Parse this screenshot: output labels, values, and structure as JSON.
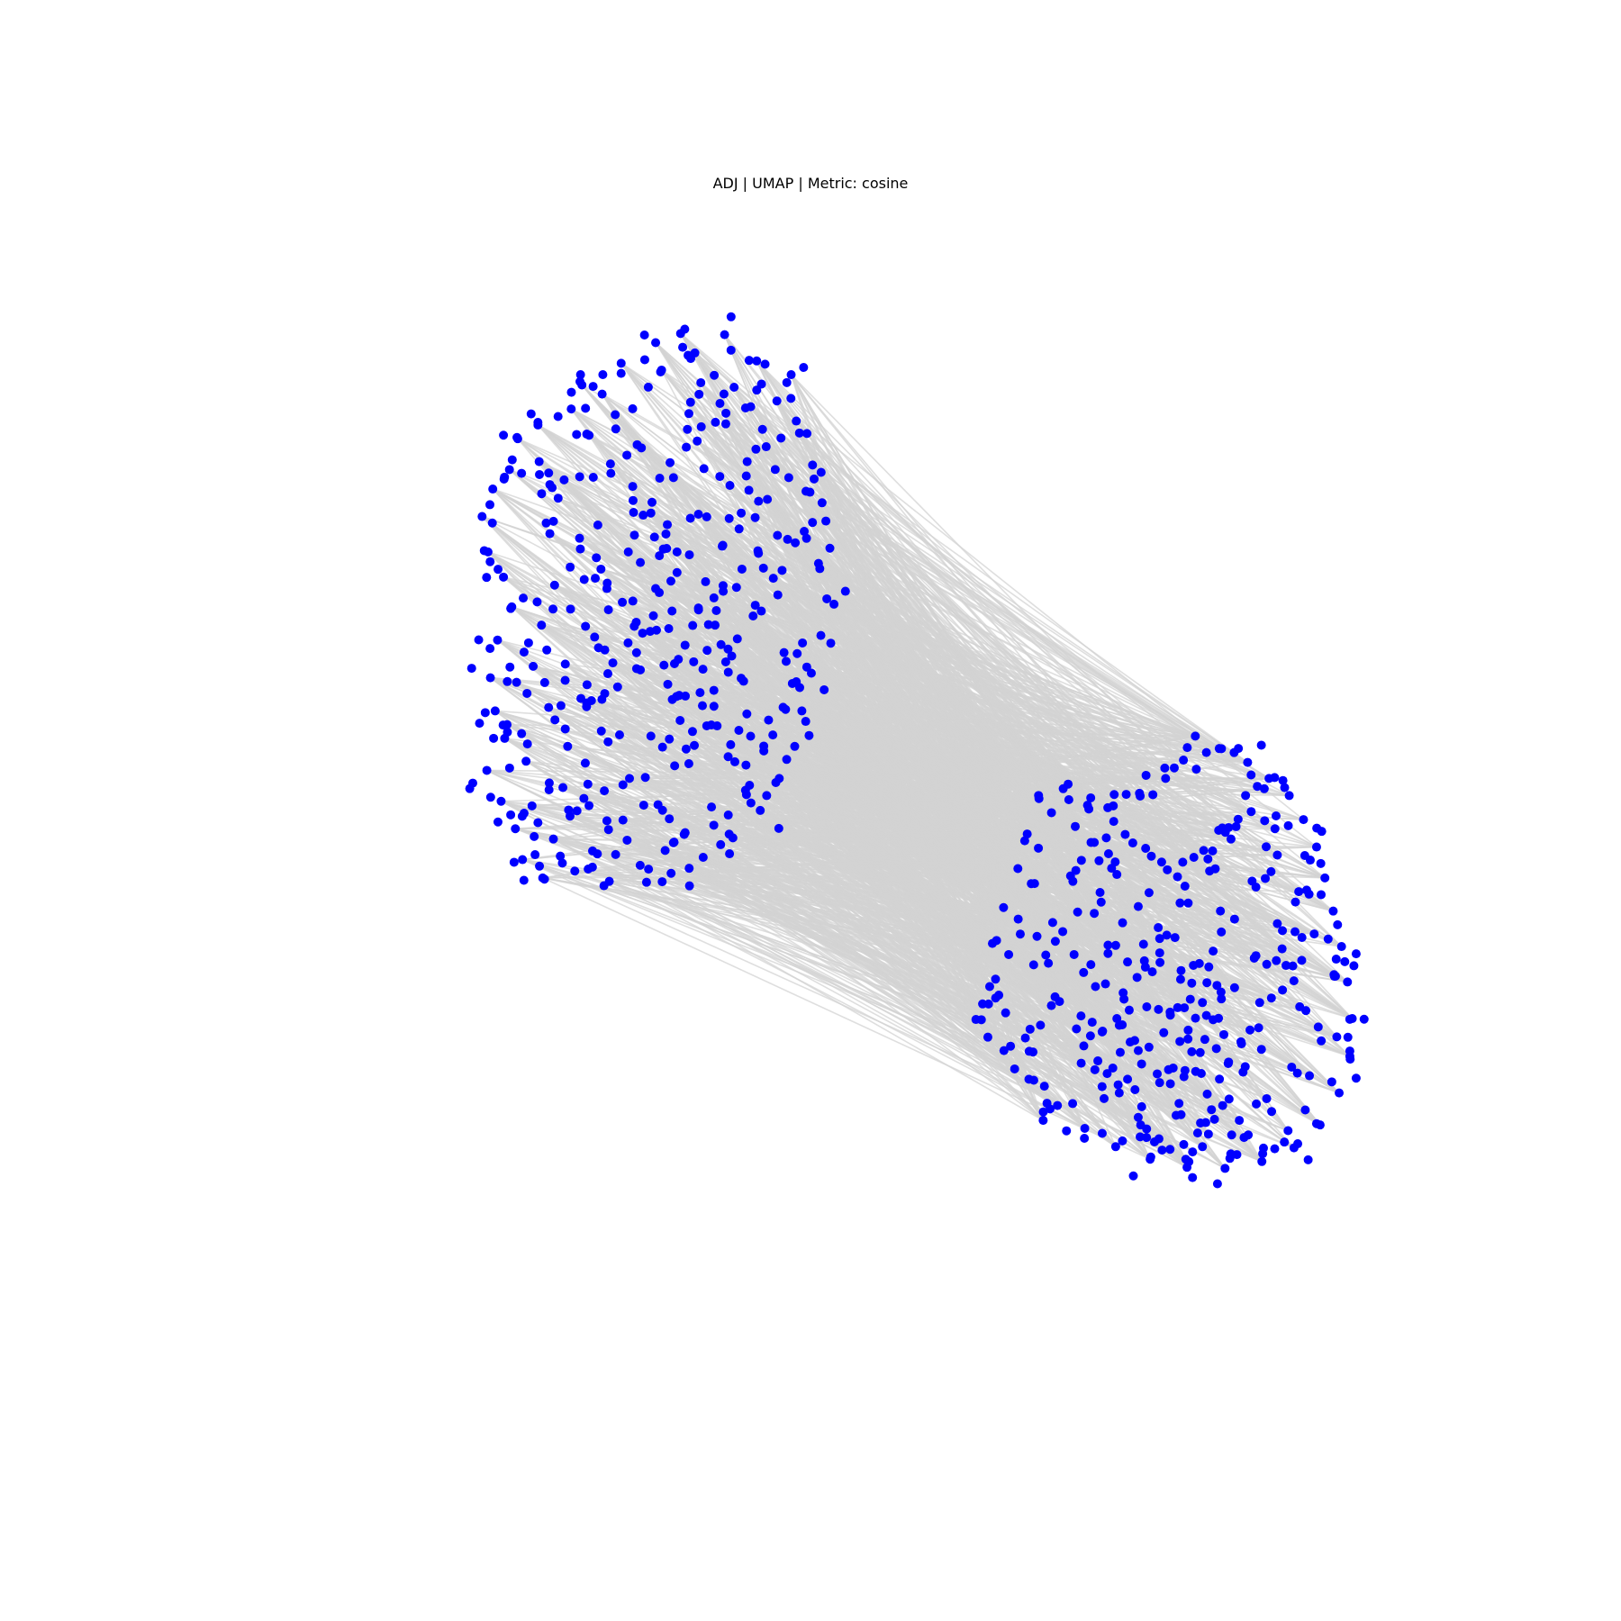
{
  "chart_data": {
    "type": "scatter",
    "title": "ADJ | UMAP | Metric: cosine",
    "xlabel": "",
    "ylabel": "",
    "axes_visible": false,
    "grid": false,
    "legend": "none",
    "node_color": "#0000ff",
    "edge_color": "#d3d3d3",
    "xlim": [
      0,
      100
    ],
    "ylim": [
      0,
      100
    ],
    "clusters": [
      {
        "points": [
          [
            34.7,
            91.3
          ],
          [
            36.8,
            92.1
          ],
          [
            38.0,
            90.4
          ],
          [
            40.5,
            92.0
          ],
          [
            43.2,
            89.7
          ],
          [
            46.1,
            88.5
          ],
          [
            44.9,
            86.2
          ],
          [
            41.3,
            87.4
          ],
          [
            38.5,
            87.8
          ],
          [
            35.2,
            88.9
          ],
          [
            31.8,
            89.5
          ],
          [
            30.2,
            86.8
          ],
          [
            27.6,
            85.5
          ],
          [
            24.8,
            84.1
          ],
          [
            23.1,
            82.9
          ],
          [
            22.4,
            80.2
          ],
          [
            21.0,
            78.5
          ],
          [
            20.1,
            76.1
          ],
          [
            20.6,
            73.0
          ],
          [
            21.9,
            70.8
          ],
          [
            22.6,
            68.2
          ],
          [
            21.4,
            65.3
          ],
          [
            20.8,
            62.0
          ],
          [
            21.2,
            59.1
          ],
          [
            22.0,
            56.7
          ],
          [
            20.5,
            53.9
          ],
          [
            21.7,
            51.2
          ],
          [
            22.9,
            48.8
          ],
          [
            23.5,
            46.1
          ],
          [
            25.2,
            44.5
          ],
          [
            27.9,
            45.1
          ],
          [
            30.8,
            44.2
          ],
          [
            33.4,
            45.6
          ],
          [
            36.0,
            44.9
          ],
          [
            38.7,
            46.3
          ],
          [
            41.2,
            48.0
          ],
          [
            43.5,
            50.4
          ],
          [
            45.1,
            53.2
          ],
          [
            46.4,
            56.0
          ],
          [
            47.0,
            59.1
          ],
          [
            47.8,
            62.4
          ],
          [
            48.6,
            65.7
          ],
          [
            49.1,
            68.9
          ],
          [
            48.4,
            72.0
          ],
          [
            47.2,
            74.8
          ],
          [
            48.7,
            77.3
          ],
          [
            47.9,
            80.6
          ],
          [
            46.8,
            83.4
          ],
          [
            24.9,
            80.9
          ],
          [
            26.5,
            77.7
          ],
          [
            28.3,
            74.2
          ],
          [
            30.1,
            71.5
          ],
          [
            31.9,
            68.6
          ],
          [
            33.6,
            65.9
          ],
          [
            35.4,
            63.1
          ],
          [
            37.2,
            60.4
          ],
          [
            39.0,
            57.8
          ],
          [
            40.8,
            55.1
          ],
          [
            42.6,
            52.6
          ],
          [
            44.2,
            58.3
          ],
          [
            42.1,
            61.7
          ],
          [
            40.2,
            64.9
          ],
          [
            38.3,
            68.1
          ],
          [
            36.5,
            71.2
          ],
          [
            34.6,
            74.3
          ],
          [
            32.8,
            77.5
          ],
          [
            30.9,
            80.7
          ],
          [
            29.1,
            83.2
          ],
          [
            26.2,
            70.1
          ],
          [
            25.1,
            66.6
          ],
          [
            24.4,
            63.0
          ],
          [
            25.7,
            59.4
          ],
          [
            27.3,
            56.0
          ],
          [
            29.0,
            52.7
          ],
          [
            30.6,
            49.5
          ],
          [
            32.3,
            47.8
          ],
          [
            34.9,
            50.9
          ],
          [
            36.3,
            54.3
          ],
          [
            37.8,
            57.3
          ],
          [
            39.6,
            60.9
          ],
          [
            41.1,
            63.9
          ],
          [
            42.9,
            67.4
          ],
          [
            44.6,
            70.7
          ],
          [
            45.8,
            74.1
          ],
          [
            44.1,
            77.6
          ],
          [
            42.4,
            80.9
          ],
          [
            40.6,
            84.2
          ],
          [
            38.2,
            82.7
          ],
          [
            36.2,
            79.5
          ],
          [
            34.3,
            76.4
          ],
          [
            32.4,
            73.0
          ],
          [
            30.6,
            69.8
          ],
          [
            28.8,
            66.5
          ],
          [
            27.1,
            63.2
          ],
          [
            28.9,
            59.8
          ],
          [
            30.7,
            56.4
          ],
          [
            32.5,
            53.2
          ],
          [
            34.3,
            56.9
          ],
          [
            36.1,
            60.1
          ],
          [
            37.9,
            63.4
          ],
          [
            39.7,
            66.6
          ],
          [
            41.5,
            69.9
          ],
          [
            43.3,
            73.1
          ],
          [
            41.9,
            76.4
          ],
          [
            40.1,
            79.6
          ],
          [
            38.3,
            76.3
          ],
          [
            36.5,
            73.0
          ],
          [
            34.7,
            69.8
          ],
          [
            32.9,
            66.5
          ],
          [
            31.1,
            63.3
          ],
          [
            29.3,
            60.0
          ],
          [
            27.5,
            49.9
          ],
          [
            23.8,
            54.7
          ],
          [
            22.2,
            57.9
          ],
          [
            23.0,
            61.6
          ],
          [
            26.9,
            52.4
          ],
          [
            31.5,
            61.2
          ],
          [
            33.1,
            62.8
          ],
          [
            35.8,
            66.3
          ],
          [
            38.9,
            70.4
          ],
          [
            40.3,
            73.5
          ],
          [
            45.5,
            64.2
          ],
          [
            46.2,
            61.5
          ],
          [
            43.8,
            55.6
          ],
          [
            41.7,
            57.4
          ],
          [
            39.4,
            50.7
          ],
          [
            37.1,
            48.3
          ],
          [
            35.5,
            46.9
          ],
          [
            29.8,
            46.6
          ],
          [
            26.1,
            47.9
          ],
          [
            24.3,
            50.8
          ],
          [
            42.7,
            85.7
          ],
          [
            44.0,
            82.2
          ],
          [
            45.9,
            79.5
          ],
          [
            37.5,
            85.1
          ],
          [
            33.5,
            82.1
          ],
          [
            31.3,
            85.0
          ],
          [
            28.5,
            87.6
          ],
          [
            27.0,
            79.3
          ],
          [
            25.8,
            74.6
          ]
        ],
        "count_shown": "≈400"
      },
      {
        "points": [
          [
            80.1,
            56.9
          ],
          [
            82.3,
            55.8
          ],
          [
            84.5,
            54.6
          ],
          [
            86.3,
            53.2
          ],
          [
            88.0,
            51.7
          ],
          [
            89.2,
            49.6
          ],
          [
            90.3,
            47.2
          ],
          [
            91.0,
            44.5
          ],
          [
            91.7,
            41.6
          ],
          [
            92.4,
            38.5
          ],
          [
            92.9,
            35.4
          ],
          [
            93.3,
            32.2
          ],
          [
            93.1,
            28.9
          ],
          [
            92.2,
            25.7
          ],
          [
            90.6,
            22.9
          ],
          [
            88.4,
            20.9
          ],
          [
            85.7,
            19.7
          ],
          [
            82.6,
            19.1
          ],
          [
            79.4,
            19.2
          ],
          [
            76.3,
            19.9
          ],
          [
            73.4,
            21.0
          ],
          [
            70.8,
            22.6
          ],
          [
            68.5,
            24.6
          ],
          [
            66.1,
            26.9
          ],
          [
            64.0,
            29.4
          ],
          [
            62.1,
            32.1
          ],
          [
            62.8,
            35.0
          ],
          [
            64.4,
            37.8
          ],
          [
            65.2,
            40.9
          ],
          [
            66.3,
            44.0
          ],
          [
            66.9,
            47.1
          ],
          [
            68.0,
            50.2
          ],
          [
            69.4,
            52.7
          ],
          [
            71.3,
            51.5
          ],
          [
            73.2,
            50.8
          ],
          [
            75.4,
            51.9
          ],
          [
            77.6,
            53.2
          ],
          [
            79.1,
            54.8
          ],
          [
            71.6,
            47.6
          ],
          [
            73.5,
            44.8
          ],
          [
            75.3,
            42.0
          ],
          [
            77.1,
            39.2
          ],
          [
            78.9,
            36.4
          ],
          [
            80.7,
            33.6
          ],
          [
            82.5,
            30.8
          ],
          [
            84.3,
            28.0
          ],
          [
            86.1,
            25.2
          ],
          [
            87.9,
            22.4
          ],
          [
            69.8,
            44.2
          ],
          [
            71.6,
            41.4
          ],
          [
            73.4,
            38.6
          ],
          [
            75.2,
            35.8
          ],
          [
            77.0,
            33.0
          ],
          [
            78.8,
            30.2
          ],
          [
            80.6,
            27.4
          ],
          [
            82.4,
            24.6
          ],
          [
            84.2,
            21.8
          ],
          [
            68.1,
            40.6
          ],
          [
            69.9,
            37.8
          ],
          [
            71.7,
            35.0
          ],
          [
            73.5,
            32.2
          ],
          [
            75.3,
            29.4
          ],
          [
            77.1,
            26.6
          ],
          [
            78.9,
            23.8
          ],
          [
            80.7,
            21.0
          ],
          [
            66.5,
            36.9
          ],
          [
            68.3,
            34.1
          ],
          [
            70.1,
            31.3
          ],
          [
            71.9,
            28.5
          ],
          [
            73.7,
            25.7
          ],
          [
            75.5,
            22.9
          ],
          [
            77.3,
            20.7
          ],
          [
            87.0,
            46.5
          ],
          [
            85.2,
            43.7
          ],
          [
            83.4,
            40.9
          ],
          [
            81.6,
            38.1
          ],
          [
            79.8,
            35.3
          ],
          [
            78.0,
            32.5
          ],
          [
            76.2,
            29.7
          ],
          [
            74.4,
            26.9
          ],
          [
            88.8,
            43.3
          ],
          [
            87.0,
            40.5
          ],
          [
            85.2,
            37.7
          ],
          [
            83.4,
            34.9
          ],
          [
            81.6,
            32.1
          ],
          [
            79.8,
            29.3
          ],
          [
            78.0,
            26.5
          ],
          [
            90.1,
            39.6
          ],
          [
            88.3,
            36.8
          ],
          [
            86.5,
            34.0
          ],
          [
            84.7,
            31.2
          ],
          [
            82.9,
            28.4
          ],
          [
            81.1,
            25.6
          ],
          [
            83.1,
            47.9
          ],
          [
            81.3,
            45.1
          ],
          [
            79.5,
            42.3
          ],
          [
            77.7,
            39.5
          ],
          [
            75.9,
            36.7
          ],
          [
            74.1,
            33.9
          ],
          [
            72.3,
            31.1
          ],
          [
            70.5,
            28.3
          ],
          [
            84.8,
            50.3
          ],
          [
            82.9,
            48.9
          ],
          [
            80.8,
            46.9
          ],
          [
            78.6,
            44.6
          ],
          [
            76.4,
            46.4
          ],
          [
            74.2,
            48.3
          ],
          [
            72.0,
            46.0
          ],
          [
            70.0,
            49.0
          ],
          [
            65.8,
            30.5
          ],
          [
            63.3,
            34.0
          ],
          [
            64.9,
            27.8
          ],
          [
            67.3,
            23.3
          ],
          [
            91.8,
            35.9
          ],
          [
            92.0,
            30.6
          ],
          [
            89.7,
            27.2
          ],
          [
            86.8,
            48.8
          ],
          [
            85.9,
            52.3
          ],
          [
            87.4,
            38.3
          ],
          [
            89.4,
            32.9
          ],
          [
            83.8,
            23.3
          ],
          [
            81.2,
            22.1
          ],
          [
            79.3,
            19.9
          ],
          [
            76.0,
            21.8
          ]
        ],
        "count_shown": "≈400"
      }
    ]
  }
}
